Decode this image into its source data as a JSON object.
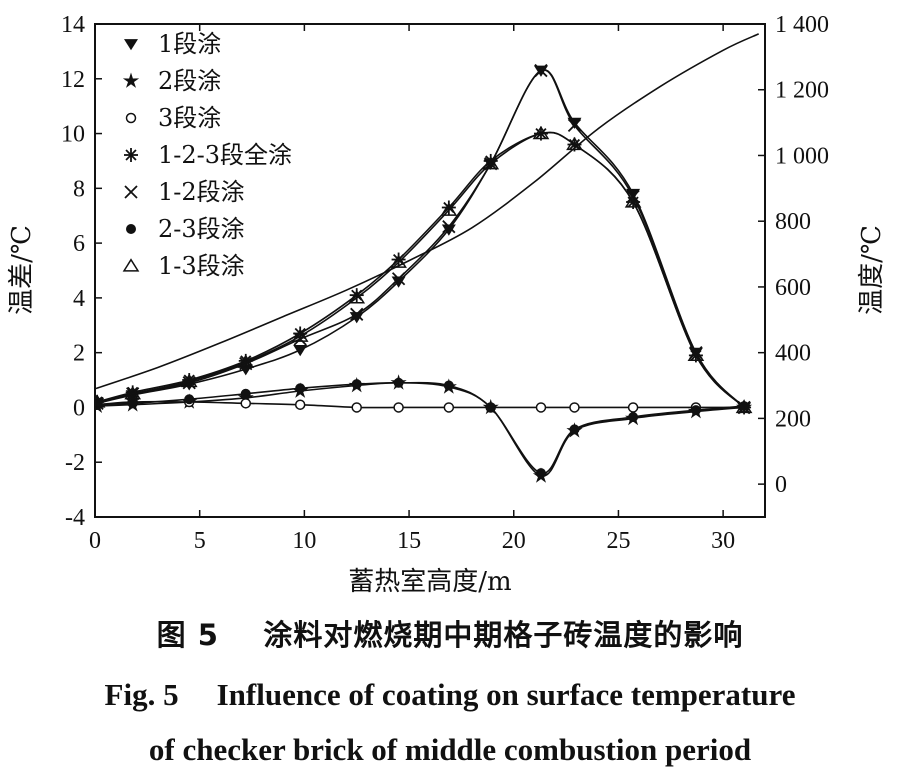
{
  "chart_data": {
    "type": "line",
    "xlabel": "蓄热室高度/m",
    "ylabel_left": "温差/℃",
    "ylabel_right": "温度/℃",
    "xlim": [
      0,
      32
    ],
    "ylim_left": [
      -4,
      14
    ],
    "ylim_right": [
      -100,
      1400
    ],
    "x_ticks": [
      0,
      5,
      10,
      15,
      20,
      25,
      30
    ],
    "y_left_ticks": [
      -4,
      -2,
      0,
      2,
      4,
      6,
      8,
      10,
      12,
      14
    ],
    "y_right_ticks": [
      0,
      200,
      400,
      600,
      800,
      1000,
      1200,
      1400
    ],
    "y_right_tick_labels": [
      "0",
      "200",
      "400",
      "600",
      "800",
      "1 000",
      "1 200",
      "1 400"
    ],
    "legend_position": "top-left",
    "series": [
      {
        "name": "1段涂",
        "marker": "triangle-down",
        "axis": "left",
        "x": [
          0.1,
          1.8,
          4.5,
          7.2,
          9.8,
          12.5,
          14.5,
          16.9,
          18.9,
          21.3,
          22.9,
          25.7,
          28.7,
          31.0
        ],
        "y": [
          0.15,
          0.45,
          0.85,
          1.4,
          2.1,
          3.3,
          4.6,
          6.5,
          8.9,
          12.3,
          10.4,
          7.8,
          2.0,
          0.0
        ]
      },
      {
        "name": "2段涂",
        "marker": "star",
        "axis": "left",
        "x": [
          0.1,
          1.8,
          4.5,
          7.2,
          9.8,
          12.5,
          14.5,
          16.9,
          18.9,
          21.3,
          22.9,
          25.7,
          28.7,
          31.0
        ],
        "y": [
          0.05,
          0.1,
          0.2,
          0.35,
          0.6,
          0.8,
          0.9,
          0.75,
          0.0,
          -2.5,
          -0.85,
          -0.4,
          -0.15,
          0.0
        ]
      },
      {
        "name": "3段涂",
        "marker": "circle-open",
        "axis": "left",
        "x": [
          0.1,
          1.8,
          4.5,
          7.2,
          9.8,
          12.5,
          14.5,
          16.9,
          18.9,
          21.3,
          22.9,
          25.7,
          28.7,
          31.0
        ],
        "y": [
          0.1,
          0.2,
          0.2,
          0.15,
          0.1,
          0.0,
          0.0,
          0.0,
          0.0,
          0.0,
          0.0,
          0.0,
          0.0,
          0.0
        ]
      },
      {
        "name": "1-2-3段全涂",
        "marker": "asterisk",
        "axis": "left",
        "x": [
          0.1,
          1.8,
          4.5,
          7.2,
          9.8,
          12.5,
          14.5,
          16.9,
          18.9,
          21.3,
          22.9,
          25.7,
          28.7,
          31.0
        ],
        "y": [
          0.2,
          0.55,
          1.0,
          1.7,
          2.7,
          4.1,
          5.4,
          7.3,
          9.0,
          10.0,
          9.6,
          7.5,
          1.9,
          0.0
        ]
      },
      {
        "name": "1-2段涂",
        "marker": "cross",
        "axis": "left",
        "x": [
          0.1,
          1.8,
          4.5,
          7.2,
          9.8,
          12.5,
          14.5,
          16.9,
          18.9,
          21.3,
          22.9,
          25.7,
          28.7,
          31.0
        ],
        "y": [
          0.15,
          0.5,
          0.9,
          1.6,
          2.5,
          3.4,
          4.7,
          6.6,
          8.9,
          12.3,
          10.3,
          7.7,
          2.0,
          0.0
        ]
      },
      {
        "name": "2-3段涂",
        "marker": "circle-filled",
        "axis": "left",
        "x": [
          0.1,
          1.8,
          4.5,
          7.2,
          9.8,
          12.5,
          14.5,
          16.9,
          18.9,
          21.3,
          22.9,
          25.7,
          28.7,
          31.0
        ],
        "y": [
          0.1,
          0.15,
          0.3,
          0.5,
          0.7,
          0.85,
          0.9,
          0.8,
          0.0,
          -2.4,
          -0.8,
          -0.35,
          -0.1,
          0.05
        ]
      },
      {
        "name": "1-3段涂",
        "marker": "triangle-up",
        "axis": "left",
        "x": [
          0.1,
          1.8,
          4.5,
          7.2,
          9.8,
          12.5,
          14.5,
          16.9,
          18.9,
          21.3,
          22.9,
          25.7,
          28.7,
          31.0
        ],
        "y": [
          0.2,
          0.5,
          0.95,
          1.65,
          2.6,
          4.0,
          5.3,
          7.2,
          8.9,
          10.0,
          9.6,
          7.5,
          1.9,
          0.0
        ]
      },
      {
        "name": "温度",
        "marker": "none",
        "axis": "right",
        "x": [
          0,
          3,
          6,
          9,
          12,
          15,
          18,
          21,
          24,
          27,
          30,
          31.7
        ],
        "y": [
          290,
          355,
          430,
          510,
          590,
          680,
          780,
          920,
          1080,
          1210,
          1320,
          1370
        ]
      }
    ]
  },
  "caption": {
    "zh_num": "图 5",
    "zh_text": "涂料对燃烧期中期格子砖温度的影响",
    "en_num": "Fig. 5",
    "en_line1": "Influence of coating on surface temperature",
    "en_line2": "of checker brick of middle combustion period"
  }
}
